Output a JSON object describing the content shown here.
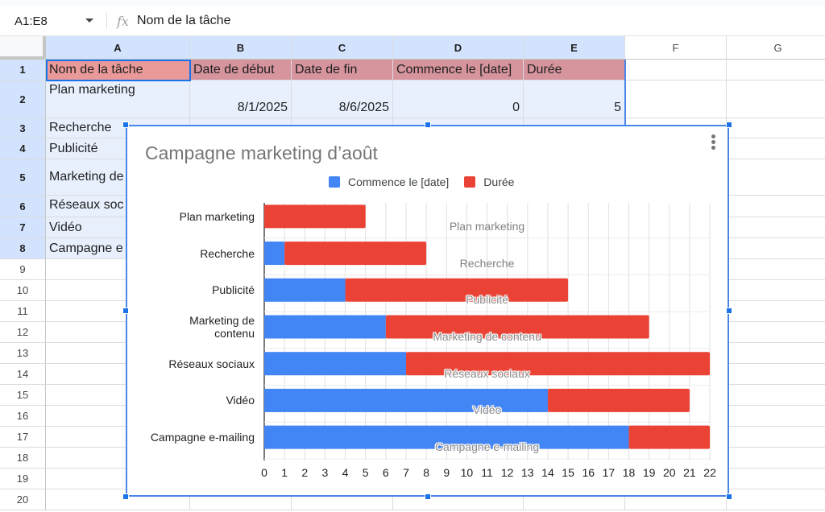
{
  "formula_bar": {
    "name_box": "A1:E8",
    "fx_icon": "fx",
    "content": "Nom de la tâche"
  },
  "sheet": {
    "columns": [
      "A",
      "B",
      "C",
      "D",
      "E",
      "F",
      "G"
    ],
    "rows": [
      "1",
      "2",
      "3",
      "4",
      "5",
      "6",
      "7",
      "8",
      "9",
      "10",
      "11",
      "12",
      "13",
      "14",
      "15",
      "16",
      "17",
      "18",
      "19",
      "20"
    ],
    "header_row": [
      "Nom de la tâche",
      "Date de début",
      "Date de fin",
      "Commence le [date]",
      "Durée"
    ],
    "data": [
      {
        "task": "Plan marketing",
        "start": "8/1/2025",
        "end": "8/6/2025",
        "offset": "0",
        "duration": "5"
      },
      {
        "task": "Recherche"
      },
      {
        "task": "Publicité"
      },
      {
        "task": "Marketing de"
      },
      {
        "task": "Réseaux soc"
      },
      {
        "task": "Vidéo"
      },
      {
        "task": "Campagne e"
      }
    ],
    "colors": {
      "header_a": "#ea9999",
      "header_other": "#d6949d",
      "selection": "#e8f0fe",
      "accent": "#1a73e8"
    }
  },
  "chart": {
    "title": "Campagne marketing d’août",
    "menu_icon": "more-vert-icon",
    "legend": [
      {
        "label": "Commence le [date]",
        "color": "#4285f4"
      },
      {
        "label": "Durée",
        "color": "#ea4335"
      }
    ]
  },
  "chart_data": {
    "type": "bar",
    "orientation": "horizontal",
    "stacked": true,
    "title": "Campagne marketing d’août",
    "categories": [
      "Plan marketing",
      "Recherche",
      "Publicité",
      "Marketing de contenu",
      "Réseaux sociaux",
      "Vidéo",
      "Campagne e-mailing"
    ],
    "series": [
      {
        "name": "Commence le [date]",
        "color": "#4285f4",
        "values": [
          0,
          1,
          4,
          6,
          7,
          14,
          18
        ]
      },
      {
        "name": "Durée",
        "color": "#ea4335",
        "values": [
          5,
          7,
          11,
          13,
          15,
          7,
          4
        ]
      }
    ],
    "x_ticks": [
      "0",
      "1",
      "2",
      "3",
      "4",
      "5",
      "6",
      "7",
      "8",
      "9",
      "10",
      "11",
      "12",
      "13",
      "14",
      "15",
      "16",
      "17",
      "18",
      "19",
      "20",
      "21",
      "22"
    ],
    "xlim": [
      0,
      22
    ],
    "grid": true,
    "legend_position": "top",
    "data_labels": [
      "Plan marketing",
      "Recherche",
      "Publicité",
      "Marketing de contenu",
      "Réseaux sociaux",
      "Vidéo",
      "Campagne e-mailing"
    ],
    "xlabel": "",
    "ylabel": ""
  }
}
